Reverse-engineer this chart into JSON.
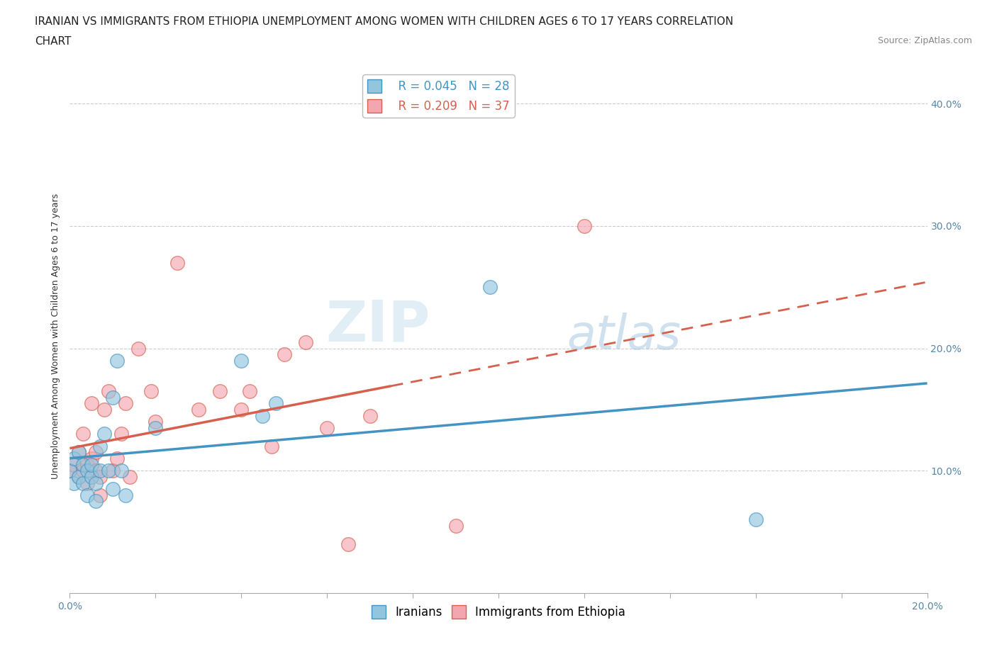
{
  "title_line1": "IRANIAN VS IMMIGRANTS FROM ETHIOPIA UNEMPLOYMENT AMONG WOMEN WITH CHILDREN AGES 6 TO 17 YEARS CORRELATION",
  "title_line2": "CHART",
  "source_text": "Source: ZipAtlas.com",
  "ylabel": "Unemployment Among Women with Children Ages 6 to 17 years",
  "xlim": [
    0.0,
    0.2
  ],
  "ylim": [
    0.0,
    0.42
  ],
  "x_ticks": [
    0.0,
    0.02,
    0.04,
    0.06,
    0.08,
    0.1,
    0.12,
    0.14,
    0.16,
    0.18,
    0.2
  ],
  "y_ticks": [
    0.0,
    0.1,
    0.2,
    0.3,
    0.4
  ],
  "y_tick_labels_right": [
    "",
    "10.0%",
    "20.0%",
    "30.0%",
    "40.0%"
  ],
  "x_tick_labels": [
    "0.0%",
    "",
    "",
    "",
    "",
    "",
    "",
    "",
    "",
    "",
    "20.0%"
  ],
  "legend_r1": "R = 0.045",
  "legend_n1": "N = 28",
  "legend_r2": "R = 0.209",
  "legend_n2": "N = 37",
  "color_iranian": "#92c5de",
  "color_ethiopia": "#f4a6b0",
  "color_iranian_border": "#4393c3",
  "color_ethiopia_border": "#d6604d",
  "color_iranian_line": "#4393c3",
  "color_ethiopia_line": "#d6604d",
  "watermark_zip": "ZIP",
  "watermark_atlas": "atlas",
  "iranians_x": [
    0.0,
    0.001,
    0.001,
    0.002,
    0.002,
    0.003,
    0.003,
    0.004,
    0.004,
    0.005,
    0.005,
    0.006,
    0.006,
    0.007,
    0.007,
    0.008,
    0.009,
    0.01,
    0.01,
    0.011,
    0.012,
    0.013,
    0.02,
    0.04,
    0.045,
    0.048,
    0.098,
    0.16
  ],
  "iranians_y": [
    0.1,
    0.09,
    0.11,
    0.095,
    0.115,
    0.09,
    0.105,
    0.08,
    0.1,
    0.095,
    0.105,
    0.075,
    0.09,
    0.1,
    0.12,
    0.13,
    0.1,
    0.085,
    0.16,
    0.19,
    0.1,
    0.08,
    0.135,
    0.19,
    0.145,
    0.155,
    0.25,
    0.06
  ],
  "ethiopia_x": [
    0.0,
    0.001,
    0.002,
    0.002,
    0.003,
    0.003,
    0.004,
    0.004,
    0.005,
    0.005,
    0.006,
    0.006,
    0.007,
    0.007,
    0.008,
    0.009,
    0.01,
    0.011,
    0.012,
    0.013,
    0.014,
    0.016,
    0.019,
    0.02,
    0.025,
    0.03,
    0.035,
    0.04,
    0.042,
    0.047,
    0.05,
    0.055,
    0.06,
    0.065,
    0.07,
    0.09,
    0.12
  ],
  "ethiopia_y": [
    0.1,
    0.105,
    0.095,
    0.115,
    0.1,
    0.13,
    0.09,
    0.105,
    0.11,
    0.155,
    0.1,
    0.115,
    0.08,
    0.095,
    0.15,
    0.165,
    0.1,
    0.11,
    0.13,
    0.155,
    0.095,
    0.2,
    0.165,
    0.14,
    0.27,
    0.15,
    0.165,
    0.15,
    0.165,
    0.12,
    0.195,
    0.205,
    0.135,
    0.04,
    0.145,
    0.055,
    0.3
  ],
  "background_color": "#ffffff",
  "grid_color": "#cccccc",
  "title_fontsize": 11,
  "axis_label_fontsize": 9,
  "tick_fontsize": 10,
  "legend_fontsize": 12
}
